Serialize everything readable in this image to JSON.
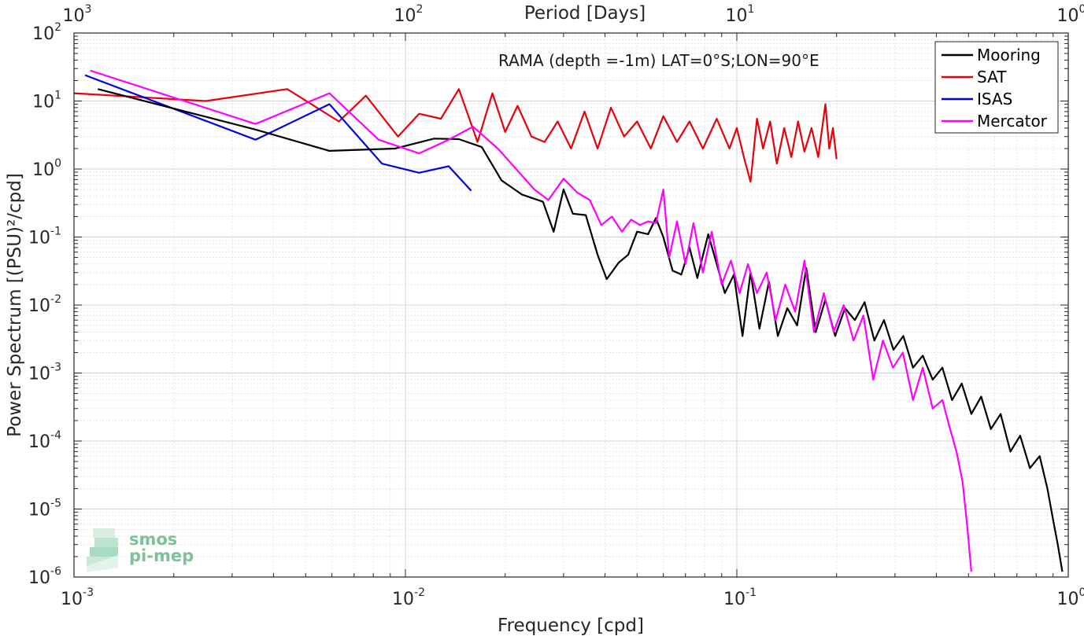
{
  "chart_data": {
    "type": "line",
    "annotation": "RAMA (depth =-1m) LAT=0°S;LON=90°E",
    "xlabel": "Frequency [cpd]",
    "ylabel": "Power Spectrum [(PSU)²/cpd]",
    "x2label": "Period [Days]",
    "xscale": "log",
    "yscale": "log",
    "xlim": [
      0.001,
      1
    ],
    "ylim": [
      1e-06,
      100
    ],
    "grid": true,
    "legend_position": "top-right",
    "x_ticks": [
      {
        "value": 0.001,
        "label": "10",
        "exp": "-3"
      },
      {
        "value": 0.01,
        "label": "10",
        "exp": "-2"
      },
      {
        "value": 0.1,
        "label": "10",
        "exp": "-1"
      },
      {
        "value": 1,
        "label": "10",
        "exp": "0"
      }
    ],
    "x2_ticks": [
      {
        "value": 0.001,
        "label": "10",
        "exp": "3"
      },
      {
        "value": 0.01,
        "label": "10",
        "exp": "2"
      },
      {
        "value": 0.1,
        "label": "10",
        "exp": "1"
      },
      {
        "value": 1,
        "label": "10",
        "exp": "0"
      }
    ],
    "y_ticks": [
      {
        "value": 100,
        "label": "10",
        "exp": "2"
      },
      {
        "value": 10,
        "label": "10",
        "exp": "1"
      },
      {
        "value": 1,
        "label": "10",
        "exp": "0"
      },
      {
        "value": 0.1,
        "label": "10",
        "exp": "-1"
      },
      {
        "value": 0.01,
        "label": "10",
        "exp": "-2"
      },
      {
        "value": 0.001,
        "label": "10",
        "exp": "-3"
      },
      {
        "value": 0.0001,
        "label": "10",
        "exp": "-4"
      },
      {
        "value": 1e-05,
        "label": "10",
        "exp": "-5"
      },
      {
        "value": 1e-06,
        "label": "10",
        "exp": "-6"
      }
    ],
    "series": [
      {
        "name": "Mooring",
        "color": "#000000",
        "points": [
          [
            0.00118,
            15
          ],
          [
            0.00353,
            3.8
          ],
          [
            0.0059,
            1.85
          ],
          [
            0.0093,
            2.0
          ],
          [
            0.0122,
            2.8
          ],
          [
            0.0145,
            2.75
          ],
          [
            0.017,
            2.1
          ],
          [
            0.0195,
            0.68
          ],
          [
            0.0225,
            0.42
          ],
          [
            0.026,
            0.33
          ],
          [
            0.028,
            0.12
          ],
          [
            0.03,
            0.5
          ],
          [
            0.032,
            0.22
          ],
          [
            0.035,
            0.21
          ],
          [
            0.038,
            0.055
          ],
          [
            0.0405,
            0.024
          ],
          [
            0.044,
            0.042
          ],
          [
            0.047,
            0.055
          ],
          [
            0.05,
            0.12
          ],
          [
            0.054,
            0.11
          ],
          [
            0.057,
            0.19
          ],
          [
            0.06,
            0.1
          ],
          [
            0.064,
            0.032
          ],
          [
            0.068,
            0.028
          ],
          [
            0.072,
            0.07
          ],
          [
            0.076,
            0.025
          ],
          [
            0.082,
            0.11
          ],
          [
            0.087,
            0.04
          ],
          [
            0.092,
            0.015
          ],
          [
            0.098,
            0.028
          ],
          [
            0.104,
            0.0035
          ],
          [
            0.11,
            0.03
          ],
          [
            0.117,
            0.0045
          ],
          [
            0.125,
            0.022
          ],
          [
            0.133,
            0.0035
          ],
          [
            0.142,
            0.009
          ],
          [
            0.152,
            0.005
          ],
          [
            0.162,
            0.035
          ],
          [
            0.173,
            0.004
          ],
          [
            0.185,
            0.012
          ],
          [
            0.198,
            0.0035
          ],
          [
            0.212,
            0.009
          ],
          [
            0.227,
            0.006
          ],
          [
            0.243,
            0.011
          ],
          [
            0.26,
            0.003
          ],
          [
            0.278,
            0.006
          ],
          [
            0.297,
            0.0022
          ],
          [
            0.318,
            0.0035
          ],
          [
            0.34,
            0.0012
          ],
          [
            0.364,
            0.0018
          ],
          [
            0.39,
            0.0008
          ],
          [
            0.417,
            0.0012
          ],
          [
            0.446,
            0.0004
          ],
          [
            0.477,
            0.0007
          ],
          [
            0.51,
            0.00025
          ],
          [
            0.546,
            0.00045
          ],
          [
            0.584,
            0.00015
          ],
          [
            0.625,
            0.00025
          ],
          [
            0.669,
            7e-05
          ],
          [
            0.716,
            0.00012
          ],
          [
            0.766,
            4e-05
          ],
          [
            0.82,
            6e-05
          ],
          [
            0.865,
            2e-05
          ],
          [
            0.9,
            7e-06
          ],
          [
            0.93,
            3e-06
          ],
          [
            0.96,
            1.2e-06
          ]
        ]
      },
      {
        "name": "SAT",
        "color": "#e8000b",
        "points": [
          [
            0.001,
            13
          ],
          [
            0.0025,
            10
          ],
          [
            0.0044,
            15
          ],
          [
            0.0063,
            5.0
          ],
          [
            0.0076,
            12
          ],
          [
            0.0095,
            3.0
          ],
          [
            0.011,
            6.5
          ],
          [
            0.0128,
            5.5
          ],
          [
            0.0145,
            15
          ],
          [
            0.0165,
            2.5
          ],
          [
            0.0183,
            13
          ],
          [
            0.02,
            3.5
          ],
          [
            0.0218,
            8.5
          ],
          [
            0.024,
            3.0
          ],
          [
            0.0263,
            2.5
          ],
          [
            0.0288,
            5.0
          ],
          [
            0.0316,
            2.0
          ],
          [
            0.0347,
            7.0
          ],
          [
            0.038,
            2.0
          ],
          [
            0.0417,
            8.0
          ],
          [
            0.0457,
            3.0
          ],
          [
            0.05,
            5.0
          ],
          [
            0.055,
            2.0
          ],
          [
            0.06,
            6.0
          ],
          [
            0.066,
            2.5
          ],
          [
            0.072,
            5.0
          ],
          [
            0.079,
            2.0
          ],
          [
            0.087,
            5.5
          ],
          [
            0.095,
            2.0
          ],
          [
            0.1,
            4.0
          ],
          [
            0.105,
            1.5
          ],
          [
            0.11,
            0.65
          ],
          [
            0.115,
            5.5
          ],
          [
            0.12,
            2.0
          ],
          [
            0.126,
            5.0
          ],
          [
            0.132,
            1.2
          ],
          [
            0.139,
            4.0
          ],
          [
            0.146,
            1.5
          ],
          [
            0.153,
            5.0
          ],
          [
            0.16,
            1.8
          ],
          [
            0.168,
            4.0
          ],
          [
            0.176,
            1.5
          ],
          [
            0.185,
            9.0
          ],
          [
            0.19,
            2.0
          ],
          [
            0.195,
            4.0
          ],
          [
            0.2,
            1.4
          ]
        ]
      },
      {
        "name": "ISAS",
        "color": "#0000e6",
        "points": [
          [
            0.00108,
            24
          ],
          [
            0.00353,
            2.7
          ],
          [
            0.0059,
            9.0
          ],
          [
            0.0085,
            1.2
          ],
          [
            0.011,
            0.88
          ],
          [
            0.0135,
            1.1
          ],
          [
            0.0158,
            0.48
          ]
        ]
      },
      {
        "name": "Mercator",
        "color": "#ff00ff",
        "points": [
          [
            0.00112,
            28
          ],
          [
            0.00353,
            4.6
          ],
          [
            0.0059,
            13
          ],
          [
            0.0083,
            2.7
          ],
          [
            0.011,
            1.7
          ],
          [
            0.0135,
            2.7
          ],
          [
            0.016,
            4.2
          ],
          [
            0.019,
            2.0
          ],
          [
            0.022,
            0.9
          ],
          [
            0.0245,
            0.5
          ],
          [
            0.027,
            0.35
          ],
          [
            0.03,
            0.72
          ],
          [
            0.033,
            0.45
          ],
          [
            0.036,
            0.35
          ],
          [
            0.039,
            0.15
          ],
          [
            0.042,
            0.2
          ],
          [
            0.045,
            0.12
          ],
          [
            0.048,
            0.18
          ],
          [
            0.051,
            0.15
          ],
          [
            0.054,
            0.17
          ],
          [
            0.057,
            0.16
          ],
          [
            0.06,
            0.5
          ],
          [
            0.0625,
            0.05
          ],
          [
            0.066,
            0.17
          ],
          [
            0.07,
            0.04
          ],
          [
            0.074,
            0.16
          ],
          [
            0.079,
            0.03
          ],
          [
            0.084,
            0.12
          ],
          [
            0.09,
            0.02
          ],
          [
            0.096,
            0.045
          ],
          [
            0.102,
            0.015
          ],
          [
            0.108,
            0.04
          ],
          [
            0.115,
            0.015
          ],
          [
            0.123,
            0.03
          ],
          [
            0.131,
            0.006
          ],
          [
            0.14,
            0.02
          ],
          [
            0.15,
            0.008
          ],
          [
            0.16,
            0.045
          ],
          [
            0.171,
            0.004
          ],
          [
            0.183,
            0.015
          ],
          [
            0.196,
            0.004
          ],
          [
            0.21,
            0.01
          ],
          [
            0.225,
            0.003
          ],
          [
            0.241,
            0.007
          ],
          [
            0.258,
            0.0008
          ],
          [
            0.276,
            0.003
          ],
          [
            0.296,
            0.0012
          ],
          [
            0.317,
            0.002
          ],
          [
            0.34,
            0.0004
          ],
          [
            0.364,
            0.0012
          ],
          [
            0.39,
            0.0003
          ],
          [
            0.417,
            0.0004
          ],
          [
            0.44,
            0.00015
          ],
          [
            0.46,
            7e-05
          ],
          [
            0.48,
            2.5e-05
          ],
          [
            0.495,
            6e-06
          ],
          [
            0.51,
            1.2e-06
          ]
        ]
      }
    ]
  },
  "logo": {
    "line1": "smos",
    "line2": "pi-mep"
  }
}
